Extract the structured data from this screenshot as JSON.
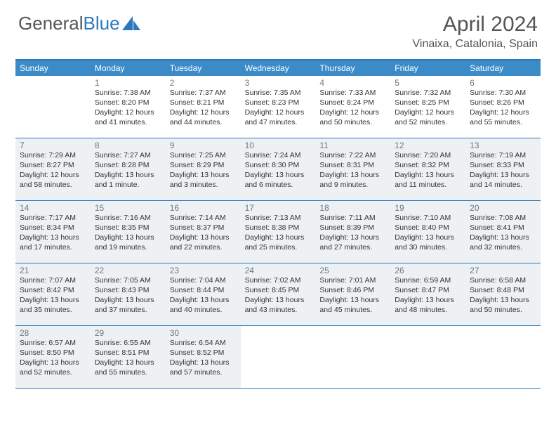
{
  "logo": {
    "text1": "General",
    "text2": "Blue"
  },
  "title": "April 2024",
  "location": "Vinaixa, Catalonia, Spain",
  "colors": {
    "header_bg": "#3b8bc9",
    "border": "#2a78bd",
    "shaded_bg": "#eef1f3",
    "text": "#333333",
    "muted": "#6a7a86"
  },
  "days_of_week": [
    "Sunday",
    "Monday",
    "Tuesday",
    "Wednesday",
    "Thursday",
    "Friday",
    "Saturday"
  ],
  "weeks": [
    [
      {
        "num": "",
        "sunrise": "",
        "sunset": "",
        "d1": "",
        "d2": "",
        "shaded": false
      },
      {
        "num": "1",
        "sunrise": "Sunrise: 7:38 AM",
        "sunset": "Sunset: 8:20 PM",
        "d1": "Daylight: 12 hours",
        "d2": "and 41 minutes.",
        "shaded": false
      },
      {
        "num": "2",
        "sunrise": "Sunrise: 7:37 AM",
        "sunset": "Sunset: 8:21 PM",
        "d1": "Daylight: 12 hours",
        "d2": "and 44 minutes.",
        "shaded": false
      },
      {
        "num": "3",
        "sunrise": "Sunrise: 7:35 AM",
        "sunset": "Sunset: 8:23 PM",
        "d1": "Daylight: 12 hours",
        "d2": "and 47 minutes.",
        "shaded": false
      },
      {
        "num": "4",
        "sunrise": "Sunrise: 7:33 AM",
        "sunset": "Sunset: 8:24 PM",
        "d1": "Daylight: 12 hours",
        "d2": "and 50 minutes.",
        "shaded": false
      },
      {
        "num": "5",
        "sunrise": "Sunrise: 7:32 AM",
        "sunset": "Sunset: 8:25 PM",
        "d1": "Daylight: 12 hours",
        "d2": "and 52 minutes.",
        "shaded": false
      },
      {
        "num": "6",
        "sunrise": "Sunrise: 7:30 AM",
        "sunset": "Sunset: 8:26 PM",
        "d1": "Daylight: 12 hours",
        "d2": "and 55 minutes.",
        "shaded": false
      }
    ],
    [
      {
        "num": "7",
        "sunrise": "Sunrise: 7:29 AM",
        "sunset": "Sunset: 8:27 PM",
        "d1": "Daylight: 12 hours",
        "d2": "and 58 minutes.",
        "shaded": true
      },
      {
        "num": "8",
        "sunrise": "Sunrise: 7:27 AM",
        "sunset": "Sunset: 8:28 PM",
        "d1": "Daylight: 13 hours",
        "d2": "and 1 minute.",
        "shaded": true
      },
      {
        "num": "9",
        "sunrise": "Sunrise: 7:25 AM",
        "sunset": "Sunset: 8:29 PM",
        "d1": "Daylight: 13 hours",
        "d2": "and 3 minutes.",
        "shaded": true
      },
      {
        "num": "10",
        "sunrise": "Sunrise: 7:24 AM",
        "sunset": "Sunset: 8:30 PM",
        "d1": "Daylight: 13 hours",
        "d2": "and 6 minutes.",
        "shaded": true
      },
      {
        "num": "11",
        "sunrise": "Sunrise: 7:22 AM",
        "sunset": "Sunset: 8:31 PM",
        "d1": "Daylight: 13 hours",
        "d2": "and 9 minutes.",
        "shaded": true
      },
      {
        "num": "12",
        "sunrise": "Sunrise: 7:20 AM",
        "sunset": "Sunset: 8:32 PM",
        "d1": "Daylight: 13 hours",
        "d2": "and 11 minutes.",
        "shaded": true
      },
      {
        "num": "13",
        "sunrise": "Sunrise: 7:19 AM",
        "sunset": "Sunset: 8:33 PM",
        "d1": "Daylight: 13 hours",
        "d2": "and 14 minutes.",
        "shaded": true
      }
    ],
    [
      {
        "num": "14",
        "sunrise": "Sunrise: 7:17 AM",
        "sunset": "Sunset: 8:34 PM",
        "d1": "Daylight: 13 hours",
        "d2": "and 17 minutes.",
        "shaded": true
      },
      {
        "num": "15",
        "sunrise": "Sunrise: 7:16 AM",
        "sunset": "Sunset: 8:35 PM",
        "d1": "Daylight: 13 hours",
        "d2": "and 19 minutes.",
        "shaded": true
      },
      {
        "num": "16",
        "sunrise": "Sunrise: 7:14 AM",
        "sunset": "Sunset: 8:37 PM",
        "d1": "Daylight: 13 hours",
        "d2": "and 22 minutes.",
        "shaded": true
      },
      {
        "num": "17",
        "sunrise": "Sunrise: 7:13 AM",
        "sunset": "Sunset: 8:38 PM",
        "d1": "Daylight: 13 hours",
        "d2": "and 25 minutes.",
        "shaded": true
      },
      {
        "num": "18",
        "sunrise": "Sunrise: 7:11 AM",
        "sunset": "Sunset: 8:39 PM",
        "d1": "Daylight: 13 hours",
        "d2": "and 27 minutes.",
        "shaded": true
      },
      {
        "num": "19",
        "sunrise": "Sunrise: 7:10 AM",
        "sunset": "Sunset: 8:40 PM",
        "d1": "Daylight: 13 hours",
        "d2": "and 30 minutes.",
        "shaded": true
      },
      {
        "num": "20",
        "sunrise": "Sunrise: 7:08 AM",
        "sunset": "Sunset: 8:41 PM",
        "d1": "Daylight: 13 hours",
        "d2": "and 32 minutes.",
        "shaded": true
      }
    ],
    [
      {
        "num": "21",
        "sunrise": "Sunrise: 7:07 AM",
        "sunset": "Sunset: 8:42 PM",
        "d1": "Daylight: 13 hours",
        "d2": "and 35 minutes.",
        "shaded": true
      },
      {
        "num": "22",
        "sunrise": "Sunrise: 7:05 AM",
        "sunset": "Sunset: 8:43 PM",
        "d1": "Daylight: 13 hours",
        "d2": "and 37 minutes.",
        "shaded": true
      },
      {
        "num": "23",
        "sunrise": "Sunrise: 7:04 AM",
        "sunset": "Sunset: 8:44 PM",
        "d1": "Daylight: 13 hours",
        "d2": "and 40 minutes.",
        "shaded": true
      },
      {
        "num": "24",
        "sunrise": "Sunrise: 7:02 AM",
        "sunset": "Sunset: 8:45 PM",
        "d1": "Daylight: 13 hours",
        "d2": "and 43 minutes.",
        "shaded": true
      },
      {
        "num": "25",
        "sunrise": "Sunrise: 7:01 AM",
        "sunset": "Sunset: 8:46 PM",
        "d1": "Daylight: 13 hours",
        "d2": "and 45 minutes.",
        "shaded": true
      },
      {
        "num": "26",
        "sunrise": "Sunrise: 6:59 AM",
        "sunset": "Sunset: 8:47 PM",
        "d1": "Daylight: 13 hours",
        "d2": "and 48 minutes.",
        "shaded": true
      },
      {
        "num": "27",
        "sunrise": "Sunrise: 6:58 AM",
        "sunset": "Sunset: 8:48 PM",
        "d1": "Daylight: 13 hours",
        "d2": "and 50 minutes.",
        "shaded": true
      }
    ],
    [
      {
        "num": "28",
        "sunrise": "Sunrise: 6:57 AM",
        "sunset": "Sunset: 8:50 PM",
        "d1": "Daylight: 13 hours",
        "d2": "and 52 minutes.",
        "shaded": true
      },
      {
        "num": "29",
        "sunrise": "Sunrise: 6:55 AM",
        "sunset": "Sunset: 8:51 PM",
        "d1": "Daylight: 13 hours",
        "d2": "and 55 minutes.",
        "shaded": true
      },
      {
        "num": "30",
        "sunrise": "Sunrise: 6:54 AM",
        "sunset": "Sunset: 8:52 PM",
        "d1": "Daylight: 13 hours",
        "d2": "and 57 minutes.",
        "shaded": true
      },
      {
        "num": "",
        "sunrise": "",
        "sunset": "",
        "d1": "",
        "d2": "",
        "shaded": false
      },
      {
        "num": "",
        "sunrise": "",
        "sunset": "",
        "d1": "",
        "d2": "",
        "shaded": false
      },
      {
        "num": "",
        "sunrise": "",
        "sunset": "",
        "d1": "",
        "d2": "",
        "shaded": false
      },
      {
        "num": "",
        "sunrise": "",
        "sunset": "",
        "d1": "",
        "d2": "",
        "shaded": false
      }
    ]
  ]
}
